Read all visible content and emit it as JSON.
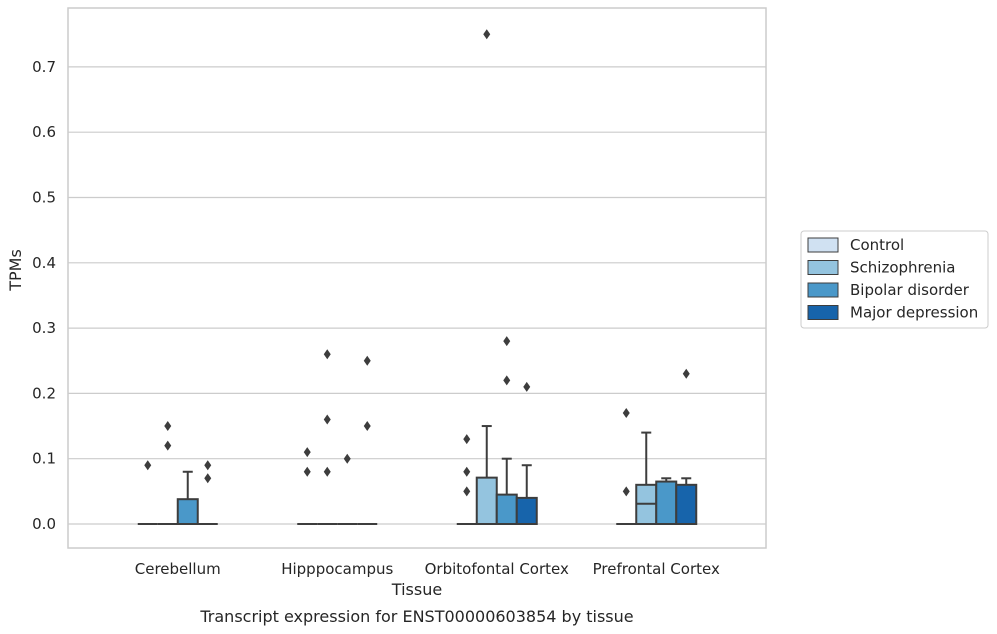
{
  "chart_data": {
    "type": "box",
    "title": "",
    "caption": "Transcript expression for ENST00000603854 by tissue",
    "xlabel": "Tissue",
    "ylabel": "TPMs",
    "ylim": [
      -0.035,
      0.79
    ],
    "yticks": [
      0.0,
      0.1,
      0.2,
      0.3,
      0.4,
      0.5,
      0.6,
      0.7
    ],
    "ytick_labels": [
      "0.0",
      "0.1",
      "0.2",
      "0.3",
      "0.4",
      "0.5",
      "0.6",
      "0.7"
    ],
    "grid": true,
    "legend_position": "right",
    "categories": [
      "Cerebellum",
      "Hipppocampus",
      "Orbitofontal Cortex",
      "Prefrontal Cortex"
    ],
    "series": [
      {
        "name": "Control",
        "color": "#d0e1f2",
        "boxes": [
          {
            "q1": 0,
            "median": 0,
            "q3": 0,
            "whisker_low": 0,
            "whisker_high": 0,
            "outliers": [
              0.09
            ]
          },
          {
            "q1": 0,
            "median": 0,
            "q3": 0,
            "whisker_low": 0,
            "whisker_high": 0,
            "outliers": [
              0.08,
              0.11
            ]
          },
          {
            "q1": 0,
            "median": 0,
            "q3": 0,
            "whisker_low": 0,
            "whisker_high": 0,
            "outliers": [
              0.05,
              0.08,
              0.13
            ]
          },
          {
            "q1": 0,
            "median": 0,
            "q3": 0,
            "whisker_low": 0,
            "whisker_high": 0,
            "outliers": [
              0.05,
              0.17
            ]
          }
        ]
      },
      {
        "name": "Schizophrenia",
        "color": "#94c4df",
        "boxes": [
          {
            "q1": 0,
            "median": 0,
            "q3": 0,
            "whisker_low": 0,
            "whisker_high": 0,
            "outliers": [
              0.12,
              0.15
            ]
          },
          {
            "q1": 0,
            "median": 0,
            "q3": 0,
            "whisker_low": 0,
            "whisker_high": 0,
            "outliers": [
              0.08,
              0.16,
              0.26
            ]
          },
          {
            "q1": 0,
            "median": 0,
            "q3": 0.071,
            "whisker_low": 0,
            "whisker_high": 0.15,
            "outliers": [
              0.75
            ]
          },
          {
            "q1": 0,
            "median": 0.031,
            "q3": 0.06,
            "whisker_low": 0,
            "whisker_high": 0.14,
            "outliers": []
          }
        ]
      },
      {
        "name": "Bipolar disorder",
        "color": "#4a98c9",
        "boxes": [
          {
            "q1": 0,
            "median": 0,
            "q3": 0.038,
            "whisker_low": 0,
            "whisker_high": 0.08,
            "outliers": []
          },
          {
            "q1": 0,
            "median": 0,
            "q3": 0,
            "whisker_low": 0,
            "whisker_high": 0,
            "outliers": [
              0.1
            ]
          },
          {
            "q1": 0,
            "median": 0,
            "q3": 0.045,
            "whisker_low": 0,
            "whisker_high": 0.1,
            "outliers": [
              0.22,
              0.28
            ]
          },
          {
            "q1": 0,
            "median": 0,
            "q3": 0.065,
            "whisker_low": 0,
            "whisker_high": 0.07,
            "outliers": []
          }
        ]
      },
      {
        "name": "Major depression",
        "color": "#1764ab",
        "boxes": [
          {
            "q1": 0,
            "median": 0,
            "q3": 0,
            "whisker_low": 0,
            "whisker_high": 0,
            "outliers": [
              0.07,
              0.09
            ]
          },
          {
            "q1": 0,
            "median": 0,
            "q3": 0,
            "whisker_low": 0,
            "whisker_high": 0,
            "outliers": [
              0.15,
              0.25
            ]
          },
          {
            "q1": 0,
            "median": 0,
            "q3": 0.04,
            "whisker_low": 0,
            "whisker_high": 0.09,
            "outliers": [
              0.21
            ]
          },
          {
            "q1": 0,
            "median": 0,
            "q3": 0.06,
            "whisker_low": 0,
            "whisker_high": 0.07,
            "outliers": [
              0.23
            ]
          }
        ]
      }
    ]
  }
}
